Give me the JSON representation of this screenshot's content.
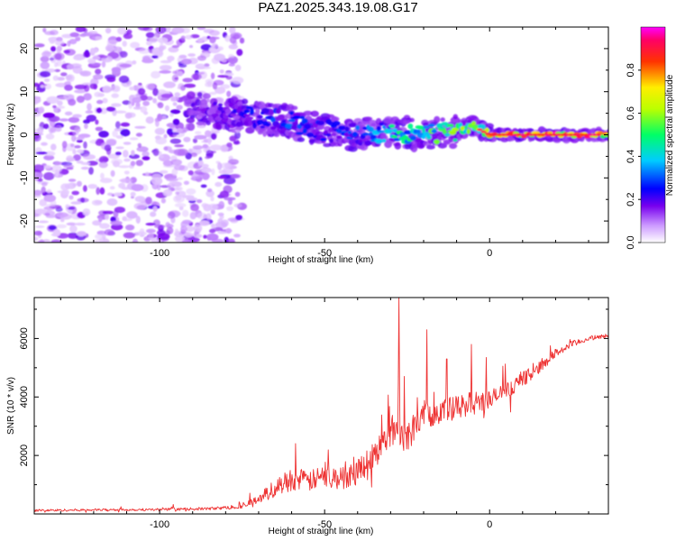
{
  "title": "PAZ1.2025.343.19.08.G17",
  "chart_data": [
    {
      "type": "heatmap",
      "name": "spectrogram",
      "xlabel": "Height of straight line (km)",
      "ylabel": "Frequency (Hz)",
      "xlim": [
        -138,
        36
      ],
      "ylim": [
        -25,
        25
      ],
      "xticks": [
        -100,
        -50,
        0
      ],
      "xtick_labels": [
        "-100",
        "-50",
        "0"
      ],
      "yticks": [
        -20,
        -10,
        0,
        10,
        20
      ],
      "ytick_labels": [
        "-20",
        "-10",
        "0",
        "10",
        "20"
      ],
      "colorbar": {
        "label": "Normalized spectral amplitude",
        "range": [
          0,
          1
        ],
        "ticks": [
          0.0,
          0.2,
          0.4,
          0.6,
          0.8
        ],
        "tick_labels": [
          "0.0",
          "0.2",
          "0.4",
          "0.6",
          "0.8"
        ],
        "colormap": "rainbow (white-violet-blue-cyan-green-yellow-red-magenta)"
      },
      "signal_ridge": {
        "x": [
          -90,
          -80,
          -70,
          -60,
          -50,
          -40,
          -30,
          -20,
          -10,
          -5,
          0,
          10,
          20,
          36
        ],
        "frequency": [
          6,
          5,
          4,
          3,
          1,
          0,
          1,
          0,
          1,
          2,
          0,
          0,
          0,
          0
        ],
        "amplitude": [
          0.15,
          0.2,
          0.25,
          0.3,
          0.25,
          0.3,
          0.45,
          0.5,
          0.6,
          0.65,
          0.8,
          0.9,
          0.95,
          0.9
        ]
      },
      "noise_region_x": [
        -138,
        -75
      ]
    },
    {
      "type": "line",
      "name": "snr",
      "xlabel": "Height of straight line (km)",
      "ylabel": "SNR (10 * v/v)",
      "xlim": [
        -138,
        36
      ],
      "ylim": [
        0,
        7400
      ],
      "xticks": [
        -100,
        -50,
        0
      ],
      "xtick_labels": [
        "-100",
        "-50",
        "0"
      ],
      "yticks": [
        2000,
        4000,
        6000
      ],
      "ytick_labels": [
        "2000",
        "4000",
        "6000"
      ],
      "color": "#ee3333",
      "series": [
        {
          "name": "SNR",
          "x": [
            -138,
            -120,
            -100,
            -85,
            -75,
            -70,
            -65,
            -60,
            -55,
            -50,
            -45,
            -40,
            -35,
            -30,
            -28,
            -25,
            -22,
            -20,
            -15,
            -10,
            -5,
            0,
            5,
            10,
            15,
            20,
            25,
            30,
            36
          ],
          "envelope": [
            120,
            140,
            150,
            180,
            250,
            500,
            900,
            1200,
            1100,
            1300,
            1200,
            1500,
            2000,
            2800,
            3000,
            2600,
            3200,
            3400,
            3500,
            3600,
            3800,
            3900,
            4200,
            4600,
            5000,
            5500,
            5800,
            6000,
            6100
          ],
          "spread": [
            80,
            80,
            80,
            100,
            120,
            350,
            600,
            800,
            700,
            800,
            800,
            900,
            1000,
            1100,
            1200,
            1100,
            1100,
            1000,
            900,
            900,
            800,
            700,
            600,
            500,
            400,
            300,
            250,
            150,
            150
          ]
        }
      ],
      "peaks": [
        {
          "x": -27.5,
          "y": 7400
        },
        {
          "x": -19,
          "y": 6300
        },
        {
          "x": -5.5,
          "y": 5800
        },
        {
          "x": -13,
          "y": 5300
        }
      ]
    }
  ]
}
